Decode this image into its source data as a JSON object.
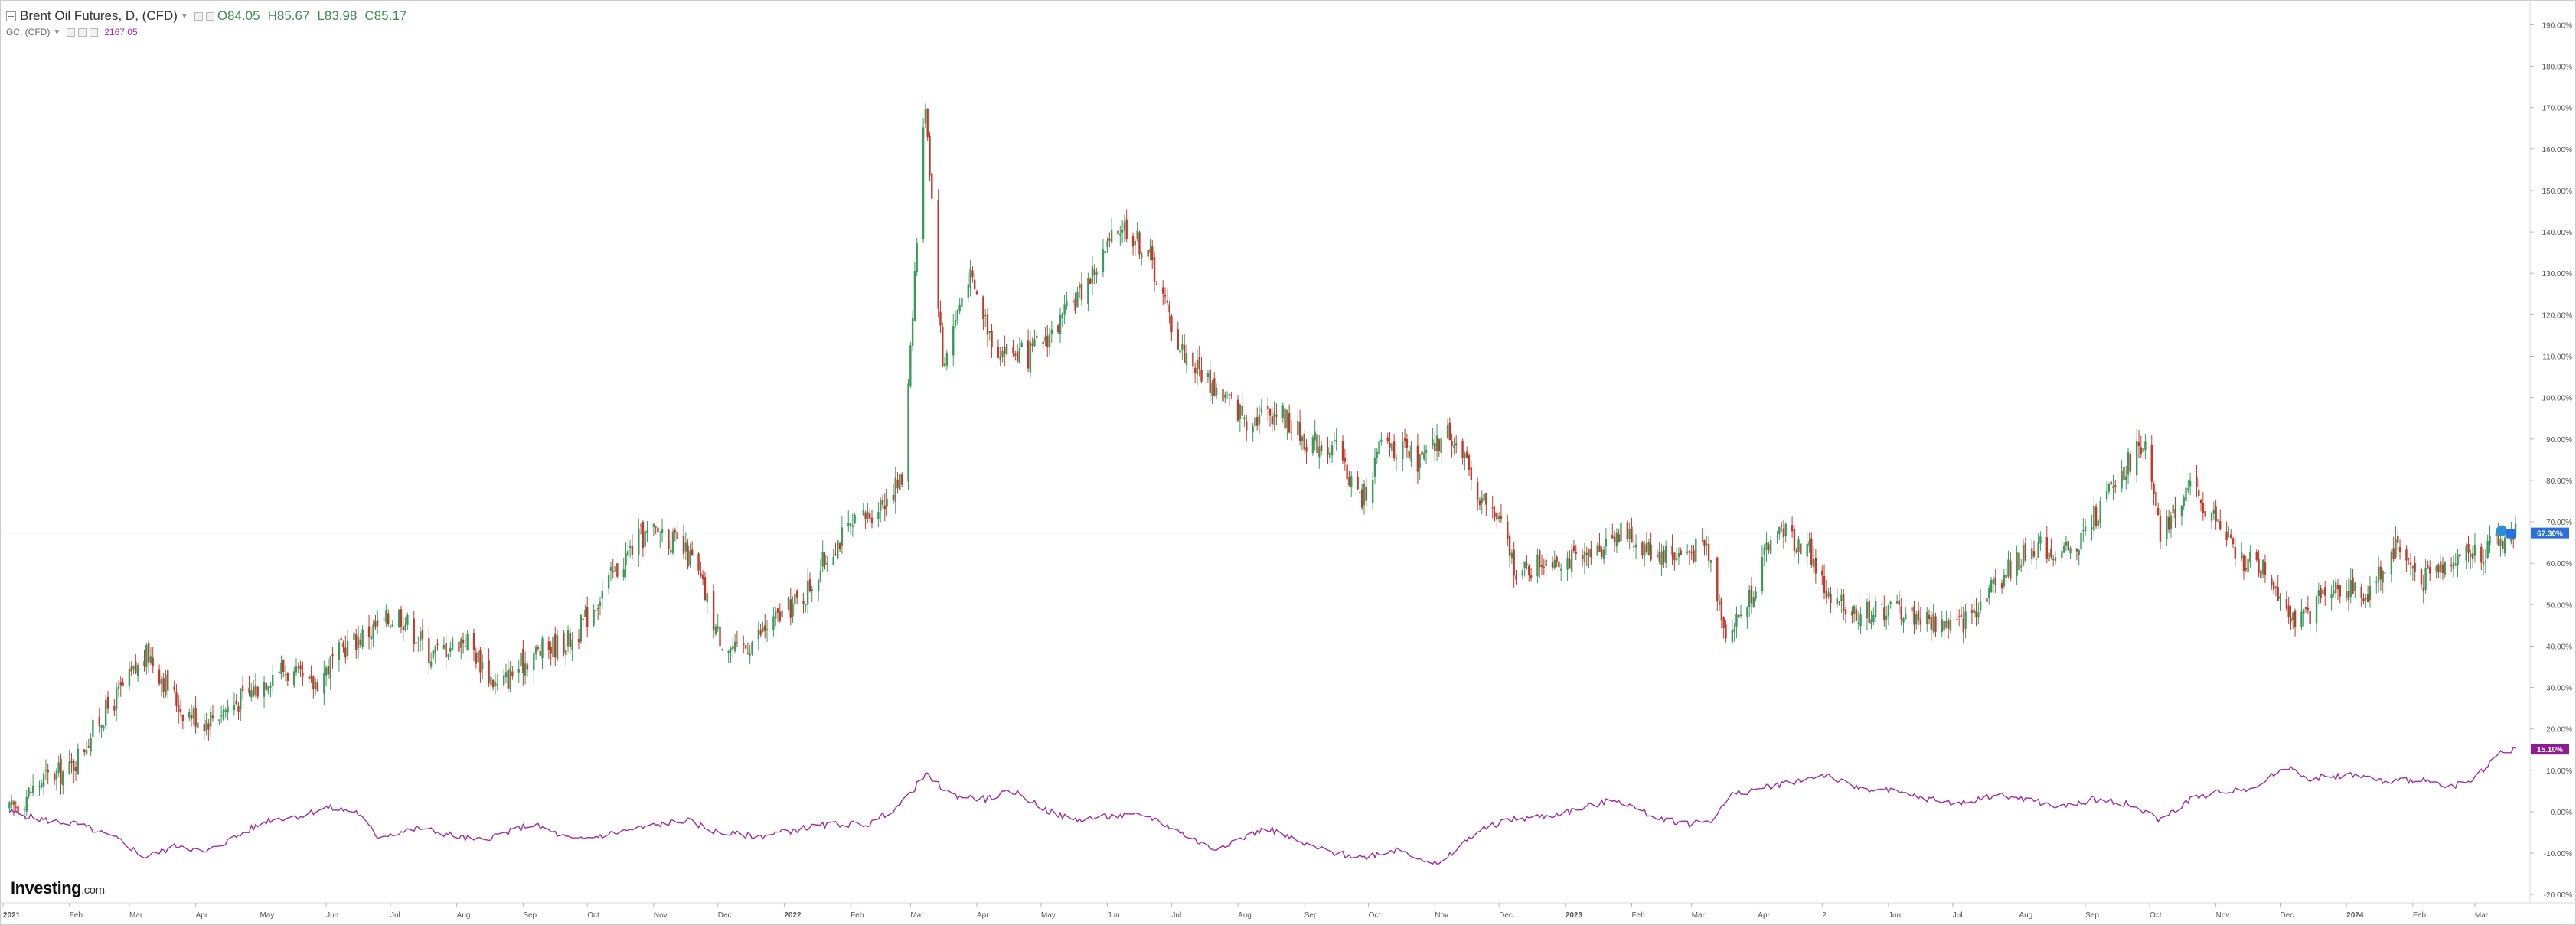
{
  "legend": {
    "main_title": "Brent Oil Futures, D, (CFD)",
    "open": "O84.05",
    "high": "H85.67",
    "low": "L83.98",
    "close": "C85.17",
    "secondary_title": "GC, (CFD)",
    "secondary_value": "2167.05"
  },
  "branding": {
    "logo_main": "Investing",
    "logo_suffix": ".com"
  },
  "colors": {
    "up": "#3a9a5b",
    "down": "#c0392b",
    "comparison_line": "#a12aa3",
    "crosshair": "#9ec3e6",
    "price_tag": "#2a6fdb",
    "comparison_tag": "#8e1b8f",
    "axis_text": "#555555"
  },
  "icons": {
    "settings": "gear-icon",
    "alert": "bell-icon"
  },
  "chart_data": {
    "type": "line",
    "title": "Brent Oil Futures, D, (CFD)",
    "y_unit": "% change",
    "ylim": [
      -22,
      196
    ],
    "xlim": [
      "2021-01-01",
      "2024-03-25"
    ],
    "yticks": [
      "190.00%",
      "180.00%",
      "170.00%",
      "160.00%",
      "150.00%",
      "140.00%",
      "130.00%",
      "120.00%",
      "110.00%",
      "100.00%",
      "90.00%",
      "80.00%",
      "70.00%",
      "60.00%",
      "50.00%",
      "40.00%",
      "30.00%",
      "20.00%",
      "10.00%",
      "0.00%",
      "-10.00%",
      "-20.00%"
    ],
    "xticks": [
      {
        "label": "2021",
        "date": "2021-01-01",
        "bold": true
      },
      {
        "label": "Feb",
        "date": "2021-02-01"
      },
      {
        "label": "Mar",
        "date": "2021-03-01"
      },
      {
        "label": "Apr",
        "date": "2021-04-01"
      },
      {
        "label": "May",
        "date": "2021-05-01"
      },
      {
        "label": "Jun",
        "date": "2021-06-01"
      },
      {
        "label": "Jul",
        "date": "2021-07-01"
      },
      {
        "label": "Aug",
        "date": "2021-08-01"
      },
      {
        "label": "Sep",
        "date": "2021-09-01"
      },
      {
        "label": "Oct",
        "date": "2021-10-01"
      },
      {
        "label": "Nov",
        "date": "2021-11-01"
      },
      {
        "label": "Dec",
        "date": "2021-12-01"
      },
      {
        "label": "2022",
        "date": "2022-01-01",
        "bold": true
      },
      {
        "label": "Feb",
        "date": "2022-02-01"
      },
      {
        "label": "Mar",
        "date": "2022-03-01"
      },
      {
        "label": "Apr",
        "date": "2022-04-01"
      },
      {
        "label": "May",
        "date": "2022-05-01"
      },
      {
        "label": "Jun",
        "date": "2022-06-01"
      },
      {
        "label": "Jul",
        "date": "2022-07-01"
      },
      {
        "label": "Aug",
        "date": "2022-08-01"
      },
      {
        "label": "Sep",
        "date": "2022-09-01"
      },
      {
        "label": "Oct",
        "date": "2022-10-01"
      },
      {
        "label": "Nov",
        "date": "2022-11-01"
      },
      {
        "label": "Dec",
        "date": "2022-12-01"
      },
      {
        "label": "2023",
        "date": "2023-01-01",
        "bold": true
      },
      {
        "label": "Feb",
        "date": "2023-02-01"
      },
      {
        "label": "Mar",
        "date": "2023-03-01"
      },
      {
        "label": "Apr",
        "date": "2023-04-01"
      },
      {
        "label": "2",
        "date": "2023-05-01"
      },
      {
        "label": "Jun",
        "date": "2023-06-01"
      },
      {
        "label": "Jul",
        "date": "2023-07-01"
      },
      {
        "label": "Aug",
        "date": "2023-08-01"
      },
      {
        "label": "Sep",
        "date": "2023-09-01"
      },
      {
        "label": "Oct",
        "date": "2023-10-01"
      },
      {
        "label": "Nov",
        "date": "2023-11-01"
      },
      {
        "label": "Dec",
        "date": "2023-12-01"
      },
      {
        "label": "2024",
        "date": "2024-01-01",
        "bold": true
      },
      {
        "label": "Feb",
        "date": "2024-02-01"
      },
      {
        "label": "Mar",
        "date": "2024-03-01"
      }
    ],
    "current_value_labels": [
      {
        "series": "Brent Oil Futures, D, (CFD)",
        "text": "67.30%",
        "value": 67.3
      },
      {
        "series": "GC, (CFD)",
        "text": "15.10%",
        "value": 15.1
      }
    ],
    "series": [
      {
        "name": "Brent Oil Futures, D, (CFD)",
        "style": "candlestick",
        "approx_closes": [
          [
            "2021-01-04",
            0
          ],
          [
            "2021-01-20",
            8
          ],
          [
            "2021-02-01",
            10
          ],
          [
            "2021-02-15",
            22
          ],
          [
            "2021-03-01",
            32
          ],
          [
            "2021-03-10",
            38
          ],
          [
            "2021-03-25",
            25
          ],
          [
            "2021-04-05",
            22
          ],
          [
            "2021-04-25",
            28
          ],
          [
            "2021-05-10",
            35
          ],
          [
            "2021-05-25",
            30
          ],
          [
            "2021-06-10",
            40
          ],
          [
            "2021-07-05",
            48
          ],
          [
            "2021-07-20",
            38
          ],
          [
            "2021-08-05",
            42
          ],
          [
            "2021-08-20",
            30
          ],
          [
            "2021-09-05",
            38
          ],
          [
            "2021-09-25",
            42
          ],
          [
            "2021-10-10",
            55
          ],
          [
            "2021-10-25",
            66
          ],
          [
            "2021-11-05",
            68
          ],
          [
            "2021-11-20",
            60
          ],
          [
            "2021-12-01",
            43
          ],
          [
            "2021-12-10",
            38
          ],
          [
            "2021-12-25",
            45
          ],
          [
            "2022-01-10",
            52
          ],
          [
            "2022-01-25",
            65
          ],
          [
            "2022-02-10",
            72
          ],
          [
            "2022-02-25",
            80
          ],
          [
            "2022-03-08",
            172
          ],
          [
            "2022-03-16",
            108
          ],
          [
            "2022-03-28",
            130
          ],
          [
            "2022-04-10",
            112
          ],
          [
            "2022-04-25",
            110
          ],
          [
            "2022-05-10",
            118
          ],
          [
            "2022-05-25",
            130
          ],
          [
            "2022-06-08",
            142
          ],
          [
            "2022-06-20",
            135
          ],
          [
            "2022-07-05",
            112
          ],
          [
            "2022-07-20",
            103
          ],
          [
            "2022-08-05",
            95
          ],
          [
            "2022-08-20",
            97
          ],
          [
            "2022-09-01",
            90
          ],
          [
            "2022-09-15",
            88
          ],
          [
            "2022-09-28",
            75
          ],
          [
            "2022-10-08",
            90
          ],
          [
            "2022-10-25",
            84
          ],
          [
            "2022-11-08",
            92
          ],
          [
            "2022-11-20",
            78
          ],
          [
            "2022-12-01",
            70
          ],
          [
            "2022-12-10",
            57
          ],
          [
            "2022-12-25",
            62
          ],
          [
            "2023-01-10",
            60
          ],
          [
            "2023-01-25",
            68
          ],
          [
            "2023-02-10",
            63
          ],
          [
            "2023-02-25",
            62
          ],
          [
            "2023-03-08",
            64
          ],
          [
            "2023-03-18",
            42
          ],
          [
            "2023-03-28",
            52
          ],
          [
            "2023-04-10",
            69
          ],
          [
            "2023-04-25",
            63
          ],
          [
            "2023-05-05",
            50
          ],
          [
            "2023-05-20",
            48
          ],
          [
            "2023-06-05",
            49
          ],
          [
            "2023-06-20",
            46
          ],
          [
            "2023-07-05",
            45
          ],
          [
            "2023-07-20",
            55
          ],
          [
            "2023-08-08",
            64
          ],
          [
            "2023-08-25",
            62
          ],
          [
            "2023-09-10",
            75
          ],
          [
            "2023-09-28",
            90
          ],
          [
            "2023-10-06",
            66
          ],
          [
            "2023-10-18",
            78
          ],
          [
            "2023-10-30",
            72
          ],
          [
            "2023-11-10",
            62
          ],
          [
            "2023-11-25",
            58
          ],
          [
            "2023-12-10",
            45
          ],
          [
            "2023-12-25",
            55
          ],
          [
            "2024-01-10",
            52
          ],
          [
            "2024-01-25",
            65
          ],
          [
            "2024-02-05",
            55
          ],
          [
            "2024-02-20",
            62
          ],
          [
            "2024-03-05",
            63
          ],
          [
            "2024-03-20",
            67.3
          ]
        ]
      },
      {
        "name": "GC, (CFD)",
        "style": "line",
        "values": [
          [
            "2021-01-04",
            0
          ],
          [
            "2021-01-20",
            -2
          ],
          [
            "2021-02-05",
            -3
          ],
          [
            "2021-02-25",
            -7
          ],
          [
            "2021-03-08",
            -11
          ],
          [
            "2021-03-25",
            -8
          ],
          [
            "2021-04-05",
            -10
          ],
          [
            "2021-04-20",
            -6
          ],
          [
            "2021-05-05",
            -2
          ],
          [
            "2021-05-20",
            -1
          ],
          [
            "2021-06-01",
            1
          ],
          [
            "2021-06-15",
            0
          ],
          [
            "2021-06-25",
            -6
          ],
          [
            "2021-07-15",
            -4
          ],
          [
            "2021-08-10",
            -7
          ],
          [
            "2021-08-25",
            -5
          ],
          [
            "2021-09-05",
            -3
          ],
          [
            "2021-09-25",
            -7
          ],
          [
            "2021-10-15",
            -5
          ],
          [
            "2021-11-05",
            -3
          ],
          [
            "2021-11-16",
            -2
          ],
          [
            "2021-12-01",
            -5
          ],
          [
            "2021-12-20",
            -6
          ],
          [
            "2022-01-10",
            -4
          ],
          [
            "2022-01-25",
            -3
          ],
          [
            "2022-02-10",
            -3
          ],
          [
            "2022-02-25",
            2
          ],
          [
            "2022-03-08",
            9
          ],
          [
            "2022-03-20",
            4
          ],
          [
            "2022-04-05",
            3
          ],
          [
            "2022-04-18",
            5
          ],
          [
            "2022-05-05",
            0
          ],
          [
            "2022-05-16",
            -2
          ],
          [
            "2022-06-05",
            -1
          ],
          [
            "2022-06-20",
            -1
          ],
          [
            "2022-07-05",
            -5
          ],
          [
            "2022-07-20",
            -9
          ],
          [
            "2022-08-05",
            -6
          ],
          [
            "2022-08-15",
            -4
          ],
          [
            "2022-09-01",
            -8
          ],
          [
            "2022-09-15",
            -10
          ],
          [
            "2022-09-28",
            -11
          ],
          [
            "2022-10-15",
            -9
          ],
          [
            "2022-11-03",
            -13
          ],
          [
            "2022-11-20",
            -5
          ],
          [
            "2022-12-05",
            -2
          ],
          [
            "2022-12-25",
            -1
          ],
          [
            "2023-01-10",
            1
          ],
          [
            "2023-01-25",
            3
          ],
          [
            "2023-02-10",
            -1
          ],
          [
            "2023-02-28",
            -3
          ],
          [
            "2023-03-10",
            -2
          ],
          [
            "2023-03-20",
            4
          ],
          [
            "2023-04-05",
            6
          ],
          [
            "2023-04-15",
            7
          ],
          [
            "2023-05-03",
            9
          ],
          [
            "2023-05-15",
            6
          ],
          [
            "2023-06-01",
            5
          ],
          [
            "2023-06-20",
            3
          ],
          [
            "2023-07-05",
            2
          ],
          [
            "2023-07-20",
            4
          ],
          [
            "2023-08-05",
            3
          ],
          [
            "2023-08-20",
            1
          ],
          [
            "2023-09-05",
            3
          ],
          [
            "2023-09-20",
            2
          ],
          [
            "2023-10-06",
            -2
          ],
          [
            "2023-10-20",
            3
          ],
          [
            "2023-11-05",
            5
          ],
          [
            "2023-11-20",
            6
          ],
          [
            "2023-12-04",
            11
          ],
          [
            "2023-12-15",
            8
          ],
          [
            "2024-01-05",
            9
          ],
          [
            "2024-01-20",
            7
          ],
          [
            "2024-02-05",
            8
          ],
          [
            "2024-02-14",
            6
          ],
          [
            "2024-02-28",
            7
          ],
          [
            "2024-03-08",
            12
          ],
          [
            "2024-03-15",
            15
          ],
          [
            "2024-03-20",
            15.1
          ]
        ]
      }
    ]
  }
}
